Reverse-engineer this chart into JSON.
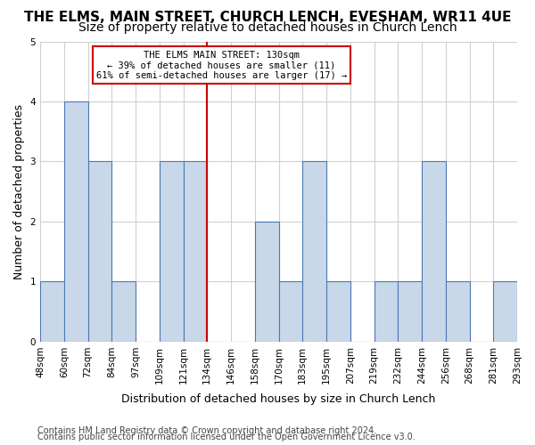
{
  "title": "THE ELMS, MAIN STREET, CHURCH LENCH, EVESHAM, WR11 4UE",
  "subtitle": "Size of property relative to detached houses in Church Lench",
  "xlabel": "Distribution of detached houses by size in Church Lench",
  "ylabel": "Number of detached properties",
  "footnote1": "Contains HM Land Registry data © Crown copyright and database right 2024.",
  "footnote2": "Contains public sector information licensed under the Open Government Licence v3.0.",
  "annotation_line1": "THE ELMS MAIN STREET: 130sqm",
  "annotation_line2": "← 39% of detached houses are smaller (11)",
  "annotation_line3": "61% of semi-detached houses are larger (17) →",
  "categories": [
    "48sqm",
    "60sqm",
    "72sqm",
    "84sqm",
    "97sqm",
    "109sqm",
    "121sqm",
    "134sqm",
    "146sqm",
    "158sqm",
    "170sqm",
    "183sqm",
    "195sqm",
    "207sqm",
    "219sqm",
    "232sqm",
    "244sqm",
    "256sqm",
    "268sqm",
    "281sqm",
    "293sqm"
  ],
  "bar_heights": [
    1,
    4,
    3,
    1,
    0,
    3,
    3,
    0,
    0,
    2,
    1,
    3,
    1,
    0,
    1,
    1,
    3,
    1,
    0,
    1
  ],
  "bar_color": "#c8d8e8",
  "bar_edge_color": "#4a7ab5",
  "red_line_color": "#cc0000",
  "annotation_box_edge": "#cc0000",
  "annotation_box_face": "white",
  "ylim": [
    0,
    5
  ],
  "yticks": [
    0,
    1,
    2,
    3,
    4,
    5
  ],
  "grid_color": "#d0d0d0",
  "background_color": "white",
  "title_fontsize": 11,
  "subtitle_fontsize": 10,
  "axis_label_fontsize": 9,
  "tick_fontsize": 7.5,
  "annotation_fontsize": 7.5,
  "footnote_fontsize": 7
}
